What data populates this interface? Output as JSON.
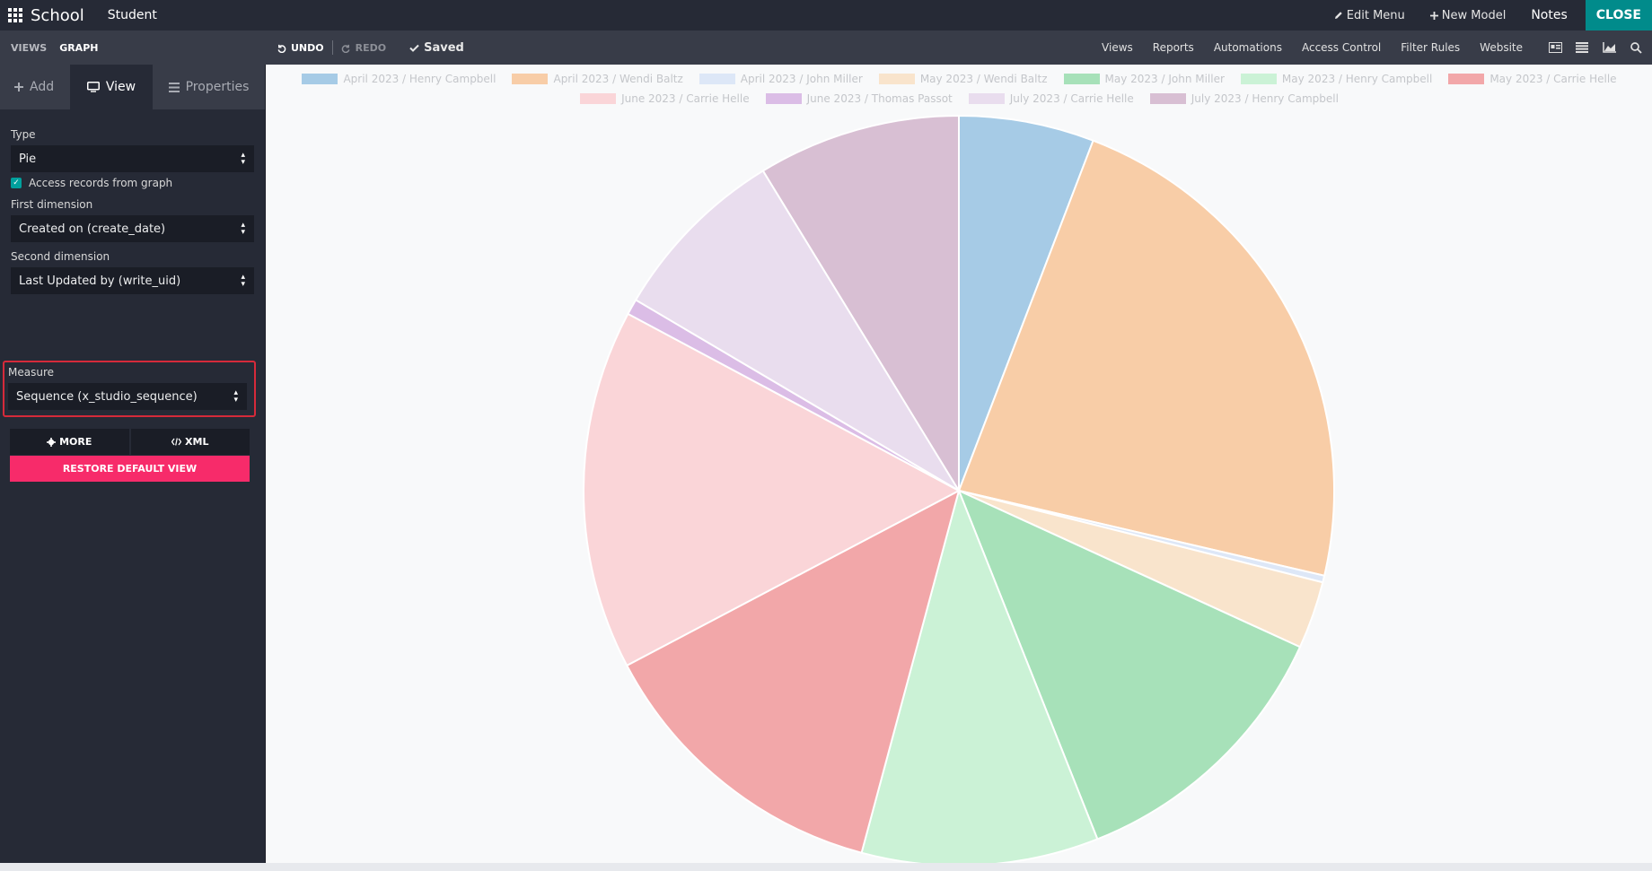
{
  "topbar": {
    "brand": "School",
    "menu_item": "Student",
    "edit_menu": "Edit Menu",
    "new_model": "New Model",
    "notes": "Notes",
    "close": "CLOSE"
  },
  "subbar": {
    "views": "VIEWS",
    "graph": "GRAPH",
    "undo": "UNDO",
    "redo": "REDO",
    "saved": "Saved",
    "links": [
      "Views",
      "Reports",
      "Automations",
      "Access Control",
      "Filter Rules",
      "Website"
    ]
  },
  "sidebar": {
    "tabs": {
      "add": "Add",
      "view": "View",
      "properties": "Properties"
    },
    "type_label": "Type",
    "type_value": "Pie",
    "access_records": "Access records from graph",
    "first_dim_label": "First dimension",
    "first_dim_value": "Created on (create_date)",
    "second_dim_label": "Second dimension",
    "second_dim_value": "Last Updated by (write_uid)",
    "measure_label": "Measure",
    "measure_value": "Sequence (x_studio_sequence)",
    "more": "MORE",
    "xml": "XML",
    "restore": "RESTORE DEFAULT VIEW"
  },
  "chart_data": {
    "type": "pie",
    "series": [
      {
        "name": "April 2023 / Henry Campbell",
        "value": 6,
        "color": "#a6cbe6"
      },
      {
        "name": "April 2023 / Wendi Baltz",
        "value": 23.5,
        "color": "#f8cda7"
      },
      {
        "name": "April 2023 / John Miller",
        "value": 0.3,
        "color": "#dde7f7"
      },
      {
        "name": "May 2023 / Wendi Baltz",
        "value": 3,
        "color": "#f9e4cc"
      },
      {
        "name": "May 2023 / John Miller",
        "value": 12.5,
        "color": "#a7e1b9"
      },
      {
        "name": "May 2023 / Henry Campbell",
        "value": 10.5,
        "color": "#cbf2d6"
      },
      {
        "name": "May 2023 / Carrie Helle",
        "value": 13.5,
        "color": "#f2a7a9"
      },
      {
        "name": "June 2023 / Carrie Helle",
        "value": 16,
        "color": "#fad5d8"
      },
      {
        "name": "June 2023 / Thomas Passot",
        "value": 0.7,
        "color": "#dbbde6"
      },
      {
        "name": "July 2023 / Carrie Helle",
        "value": 8,
        "color": "#e9ddee"
      },
      {
        "name": "July 2023 / Henry Campbell",
        "value": 9,
        "color": "#d8bfd3"
      }
    ]
  }
}
